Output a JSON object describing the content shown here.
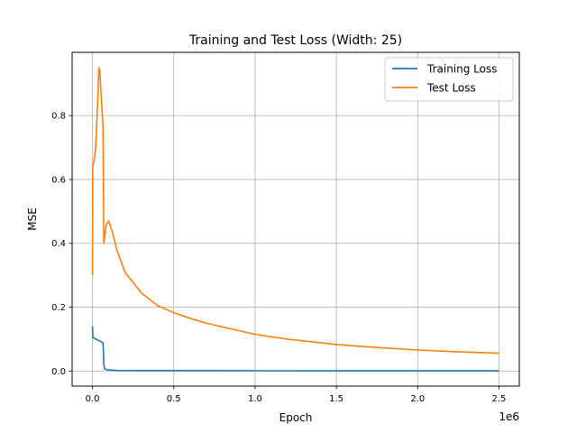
{
  "chart_data": {
    "type": "line",
    "title": "Training and Test Loss (Width: 25)",
    "xlabel": "Epoch",
    "ylabel": "MSE",
    "x_offset_label": "1e6",
    "xlim": [
      -125000,
      2625000
    ],
    "ylim": [
      -0.047,
      0.998
    ],
    "x_ticks": [
      0,
      500000,
      1000000,
      1500000,
      2000000,
      2500000
    ],
    "x_tick_labels": [
      "0.0",
      "0.5",
      "1.0",
      "1.5",
      "2.0",
      "2.5"
    ],
    "y_ticks": [
      0.0,
      0.2,
      0.4,
      0.6,
      0.8
    ],
    "y_tick_labels": [
      "0.0",
      "0.2",
      "0.4",
      "0.6",
      "0.8"
    ],
    "grid": true,
    "legend_position": "top-right",
    "series": [
      {
        "name": "Training Loss",
        "color": "#1f77b4",
        "points": [
          [
            0,
            0.14
          ],
          [
            3000,
            0.105
          ],
          [
            10000,
            0.103
          ],
          [
            30000,
            0.098
          ],
          [
            50000,
            0.093
          ],
          [
            65000,
            0.088
          ],
          [
            68000,
            0.06
          ],
          [
            70000,
            0.02
          ],
          [
            75000,
            0.007
          ],
          [
            90000,
            0.004
          ],
          [
            150000,
            0.002
          ],
          [
            300000,
            0.0015
          ],
          [
            1000000,
            0.001
          ],
          [
            2000000,
            0.0008
          ],
          [
            2500000,
            0.0007
          ]
        ]
      },
      {
        "name": "Test Loss",
        "color": "#ff7f0e",
        "points": [
          [
            0,
            0.3
          ],
          [
            2000,
            0.64
          ],
          [
            10000,
            0.66
          ],
          [
            20000,
            0.7
          ],
          [
            30000,
            0.82
          ],
          [
            40000,
            0.95
          ],
          [
            45000,
            0.94
          ],
          [
            55000,
            0.85
          ],
          [
            65000,
            0.77
          ],
          [
            68000,
            0.55
          ],
          [
            70000,
            0.4
          ],
          [
            75000,
            0.42
          ],
          [
            85000,
            0.46
          ],
          [
            100000,
            0.47
          ],
          [
            120000,
            0.44
          ],
          [
            150000,
            0.38
          ],
          [
            200000,
            0.31
          ],
          [
            300000,
            0.245
          ],
          [
            400000,
            0.205
          ],
          [
            500000,
            0.183
          ],
          [
            600000,
            0.165
          ],
          [
            700000,
            0.15
          ],
          [
            800000,
            0.138
          ],
          [
            1000000,
            0.115
          ],
          [
            1200000,
            0.1
          ],
          [
            1500000,
            0.083
          ],
          [
            1750000,
            0.074
          ],
          [
            2000000,
            0.066
          ],
          [
            2250000,
            0.06
          ],
          [
            2500000,
            0.056
          ]
        ]
      }
    ]
  }
}
